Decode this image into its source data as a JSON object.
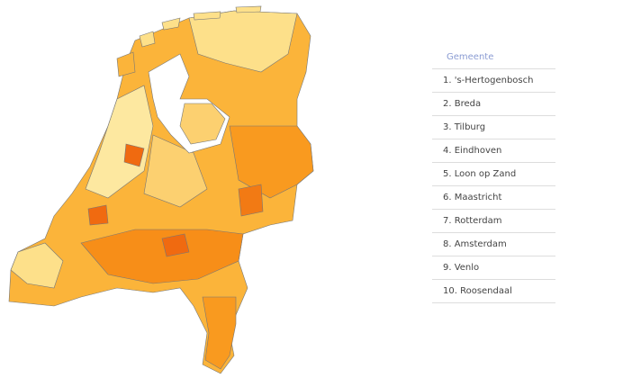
{
  "list": {
    "header": "Gemeente",
    "items": [
      "1. 's-Hertogenbosch",
      "2. Breda",
      "3. Tilburg",
      "4. Eindhoven",
      "5. Loon op Zand",
      "6. Maastricht",
      "7. Rotterdam",
      "8. Amsterdam",
      "9. Venlo",
      "10. Roosendaal"
    ]
  }
}
